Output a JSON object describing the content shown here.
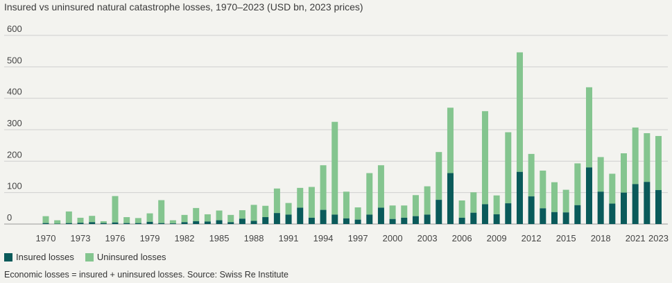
{
  "title": "Insured vs uninsured natural catastrophe losses, 1970–2023 (USD bn, 2023 prices)",
  "legend": {
    "insured_label": "Insured losses",
    "uninsured_label": "Uninsured losses"
  },
  "footnote": "Economic losses = insured + uninsured losses. Source: Swiss Re Institute",
  "colors": {
    "insured": "#0a5a5a",
    "uninsured": "#84c58f",
    "grid": "#cfcfcf",
    "background": "#f3f3ef"
  },
  "chart_data": {
    "type": "bar",
    "stacked": true,
    "title": "Insured vs uninsured natural catastrophe losses, 1970–2023 (USD bn, 2023 prices)",
    "xlabel": "",
    "ylabel": "",
    "ylim": [
      0,
      600
    ],
    "yticks": [
      0,
      100,
      200,
      300,
      400,
      500,
      600
    ],
    "grid": true,
    "legend_position": "bottom-left",
    "x": [
      1970,
      1971,
      1972,
      1973,
      1974,
      1975,
      1976,
      1977,
      1978,
      1979,
      1980,
      1981,
      1982,
      1983,
      1984,
      1985,
      1986,
      1987,
      1988,
      1989,
      1990,
      1991,
      1992,
      1993,
      1994,
      1995,
      1996,
      1997,
      1998,
      1999,
      2000,
      2001,
      2002,
      2003,
      2004,
      2005,
      2006,
      2007,
      2008,
      2009,
      2010,
      2011,
      2012,
      2013,
      2014,
      2015,
      2016,
      2017,
      2018,
      2019,
      2020,
      2021,
      2022,
      2023
    ],
    "xtick_labels": [
      "1970",
      "1973",
      "1976",
      "1979",
      "1982",
      "1985",
      "1988",
      "1991",
      "1994",
      "1997",
      "2000",
      "2003",
      "2006",
      "2009",
      "2012",
      "2015",
      "2018",
      "2021",
      "2023"
    ],
    "series": [
      {
        "name": "Insured losses",
        "values": [
          3,
          1,
          3,
          4,
          6,
          3,
          5,
          3,
          3,
          7,
          3,
          2,
          6,
          9,
          8,
          12,
          6,
          17,
          10,
          22,
          35,
          30,
          52,
          20,
          45,
          30,
          18,
          14,
          30,
          52,
          16,
          20,
          25,
          30,
          77,
          162,
          20,
          36,
          63,
          31,
          66,
          166,
          88,
          50,
          38,
          37,
          60,
          180,
          103,
          65,
          100,
          127,
          134,
          108
        ]
      },
      {
        "name": "Uninsured losses",
        "values": [
          22,
          11,
          37,
          16,
          20,
          6,
          84,
          19,
          16,
          27,
          73,
          10,
          23,
          42,
          23,
          31,
          23,
          27,
          51,
          36,
          78,
          37,
          63,
          98,
          142,
          295,
          85,
          39,
          132,
          135,
          43,
          39,
          67,
          90,
          152,
          208,
          55,
          65,
          296,
          60,
          226,
          380,
          135,
          120,
          95,
          72,
          133,
          255,
          110,
          95,
          125,
          180,
          155,
          172
        ]
      }
    ]
  }
}
